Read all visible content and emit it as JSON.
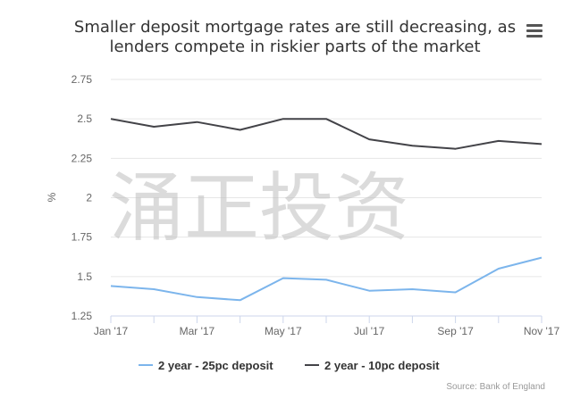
{
  "chart_data": {
    "type": "line",
    "title_lines": [
      "Smaller deposit mortgage rates are still decreasing, as",
      "lenders compete in riskier parts of the market"
    ],
    "ylabel": "%",
    "ylim": [
      1.25,
      2.75
    ],
    "yticks": [
      "1.25",
      "1.5",
      "1.75",
      "2",
      "2.25",
      "2.5",
      "2.75"
    ],
    "x": [
      "Jan '17",
      "Feb '17",
      "Mar '17",
      "Apr '17",
      "May '17",
      "Jun '17",
      "Jul '17",
      "Aug '17",
      "Sep '17",
      "Oct '17",
      "Nov '17"
    ],
    "xticks_shown": [
      "Jan '17",
      "Mar '17",
      "May '17",
      "Jul '17",
      "Sep '17",
      "Nov '17"
    ],
    "series": [
      {
        "name": "2 year - 25pc deposit",
        "color": "#7cb5ec",
        "values": [
          1.44,
          1.42,
          1.37,
          1.35,
          1.49,
          1.48,
          1.41,
          1.42,
          1.4,
          1.55,
          1.62
        ]
      },
      {
        "name": "2 year - 10pc deposit",
        "color": "#434348",
        "values": [
          2.5,
          2.45,
          2.48,
          2.43,
          2.5,
          2.5,
          2.37,
          2.33,
          2.31,
          2.36,
          2.34
        ]
      }
    ],
    "grid": true,
    "legend": "bottom"
  },
  "credit": "Source: Bank of England",
  "watermark": "涌正投资",
  "menu_icon": "hamburger-menu-icon"
}
